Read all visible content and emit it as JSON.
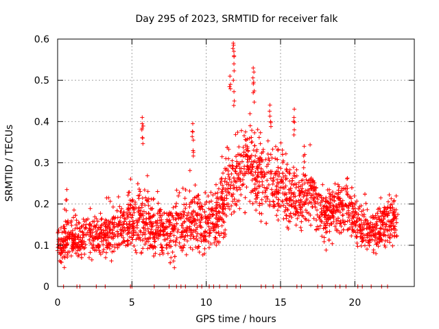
{
  "chart_data": {
    "type": "scatter",
    "title": "Day 295 of 2023, SRMTID for receiver falk",
    "xlabel": "GPS time / hours",
    "ylabel": "SRMTID / TECUs",
    "xlim": [
      0,
      24
    ],
    "ylim": [
      0,
      0.6
    ],
    "x_ticks": [
      0,
      5,
      10,
      15,
      20
    ],
    "x_tick_labels": [
      "0",
      "5",
      "10",
      "15",
      "20"
    ],
    "y_ticks": [
      0,
      0.1,
      0.2,
      0.3,
      0.4,
      0.5,
      0.6
    ],
    "y_tick_labels": [
      "0",
      "0.1",
      "0.2",
      "0.3",
      "0.4",
      "0.5",
      "0.6"
    ],
    "grid": true,
    "marker": "plus",
    "series": [
      {
        "name": "SRMTID",
        "color": "#ff0000",
        "trend": {
          "x": [
            0,
            0.5,
            1,
            1.5,
            2,
            2.5,
            3,
            3.5,
            4,
            4.5,
            5,
            5.5,
            6,
            6.5,
            7,
            7.5,
            8,
            8.5,
            9,
            9.5,
            10,
            10.5,
            11,
            11.5,
            12,
            12.5,
            13,
            13.5,
            14,
            14.5,
            15,
            15.5,
            16,
            16.5,
            17,
            17.5,
            18,
            18.5,
            19,
            19.5,
            20,
            20.5,
            21,
            21.5,
            22,
            22.5,
            22.9
          ],
          "y": [
            0.1,
            0.11,
            0.115,
            0.11,
            0.12,
            0.125,
            0.12,
            0.13,
            0.14,
            0.15,
            0.155,
            0.16,
            0.15,
            0.145,
            0.14,
            0.13,
            0.14,
            0.15,
            0.17,
            0.16,
            0.15,
            0.17,
            0.19,
            0.23,
            0.27,
            0.28,
            0.29,
            0.27,
            0.26,
            0.25,
            0.24,
            0.23,
            0.22,
            0.21,
            0.22,
            0.2,
            0.17,
            0.18,
            0.19,
            0.2,
            0.17,
            0.14,
            0.13,
            0.14,
            0.15,
            0.16,
            0.16
          ],
          "spread": [
            0.03,
            0.035,
            0.035,
            0.035,
            0.04,
            0.04,
            0.04,
            0.045,
            0.045,
            0.05,
            0.05,
            0.05,
            0.05,
            0.05,
            0.045,
            0.045,
            0.05,
            0.05,
            0.055,
            0.055,
            0.05,
            0.055,
            0.06,
            0.07,
            0.07,
            0.07,
            0.07,
            0.065,
            0.06,
            0.06,
            0.06,
            0.06,
            0.055,
            0.055,
            0.05,
            0.05,
            0.05,
            0.05,
            0.05,
            0.05,
            0.045,
            0.04,
            0.04,
            0.04,
            0.04,
            0.04,
            0.04
          ]
        },
        "spikes": [
          {
            "x": 0.6,
            "values": [
              0.21,
              0.235
            ]
          },
          {
            "x": 5.7,
            "values": [
              0.36,
              0.38,
              0.395,
              0.41
            ]
          },
          {
            "x": 9.1,
            "values": [
              0.33,
              0.355,
              0.375,
              0.395
            ]
          },
          {
            "x": 11.85,
            "values": [
              0.45,
              0.5,
              0.54,
              0.57,
              0.585,
              0.59
            ]
          },
          {
            "x": 11.6,
            "values": [
              0.49,
              0.51
            ]
          },
          {
            "x": 13.2,
            "values": [
              0.47,
              0.495,
              0.52,
              0.53
            ]
          },
          {
            "x": 14.3,
            "values": [
              0.4,
              0.425,
              0.44
            ]
          },
          {
            "x": 15.9,
            "values": [
              0.38,
              0.41,
              0.43
            ]
          },
          {
            "x": 16.6,
            "values": [
              0.32,
              0.34
            ]
          }
        ],
        "zero_points_x": [
          0.4,
          1.3,
          1.5,
          2.6,
          3.2,
          4.9,
          5.0,
          6.5,
          7.5,
          8.0,
          8.3,
          8.6,
          9.4,
          9.7,
          10.2,
          10.5,
          10.9,
          11.4,
          12.0,
          12.3,
          13.7,
          14.0,
          14.5,
          15.0,
          16.1,
          16.4,
          17.5,
          17.8,
          18.7,
          19.0,
          19.4,
          20.2,
          20.5,
          21.1,
          21.8,
          22.2
        ]
      }
    ]
  }
}
